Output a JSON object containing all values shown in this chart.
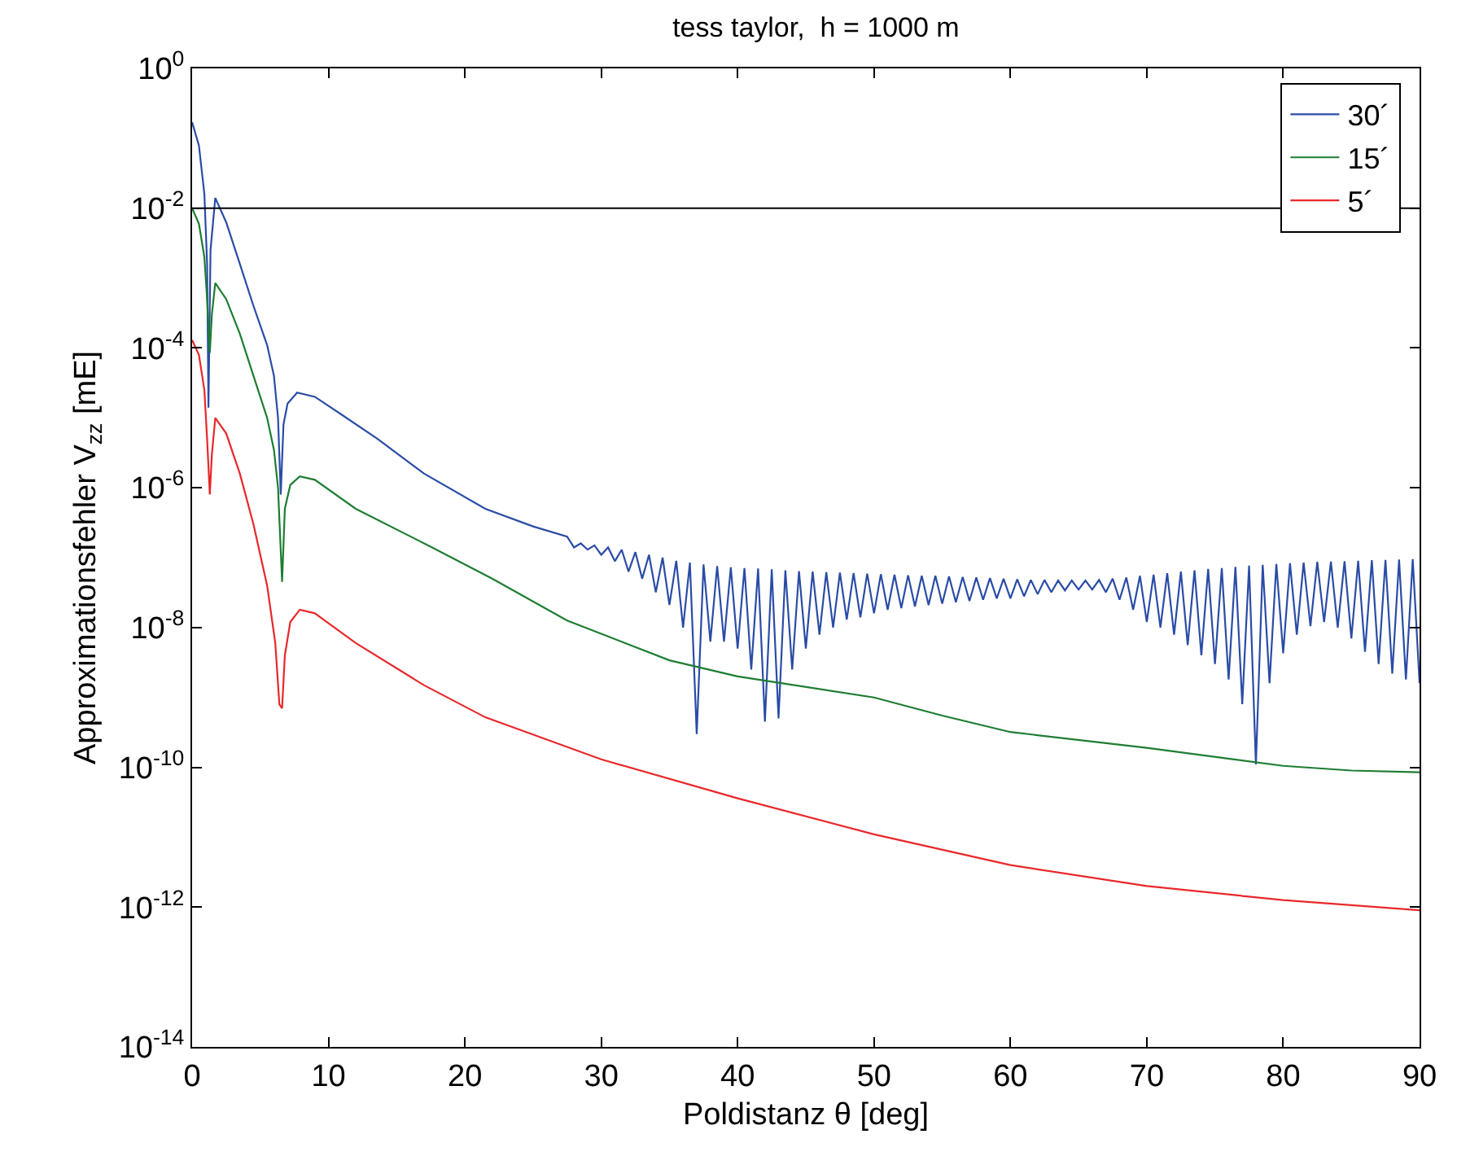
{
  "chart_data": {
    "type": "line",
    "title": "tess taylor,  h = 1000 m",
    "xlabel": "Poldistanz θ [deg]",
    "ylabel": "Approximationsfehler V$_{zz}$ [mE]",
    "log": "y",
    "legend": "top right",
    "marker": "none",
    "line_style": "solid",
    "xlim": [
      0,
      90
    ],
    "xticks": [
      0,
      10,
      20,
      30,
      40,
      50,
      60,
      70,
      80,
      90
    ],
    "ylim": [
      1e-14,
      1
    ],
    "yticks": [
      {
        "value": 1,
        "label": "10$^{0}$"
      },
      {
        "value": 0.01,
        "label": "10$^{-2}$"
      },
      {
        "value": 0.0001,
        "label": "10$^{-4}$"
      },
      {
        "value": 1e-06,
        "label": "10$^{-6}$"
      },
      {
        "value": 1e-08,
        "label": "10$^{-8}$"
      },
      {
        "value": 1e-10,
        "label": "10$^{-10}$"
      },
      {
        "value": 1e-12,
        "label": "10$^{-12}$"
      },
      {
        "value": 1e-14,
        "label": "10$^{-14}$"
      }
    ],
    "ref_lines": [
      {
        "axis": "y",
        "value": 0.01,
        "color": "#000000"
      }
    ],
    "series": [
      {
        "name": "30´",
        "color": "#2a4ca6",
        "x": [
          0,
          0.5,
          0.9,
          1.1,
          1.2,
          1.35,
          1.7,
          2.5,
          3.5,
          4.5,
          5.5,
          6.0,
          6.3,
          6.5,
          6.7,
          7.0,
          7.7,
          9,
          11,
          13.6,
          17,
          21.5,
          25,
          27.5,
          28,
          28.5,
          29,
          29.5,
          30,
          30.5,
          31,
          31.5,
          32,
          32.5,
          33,
          33.5,
          34,
          34.5,
          35,
          35.5,
          36,
          36.5,
          37,
          37.5,
          38,
          38.5,
          39,
          39.5,
          40,
          40.5,
          41,
          41.5,
          42,
          42.5,
          43,
          43.5,
          44,
          44.5,
          45,
          45.5,
          46,
          46.5,
          47,
          47.5,
          48,
          48.5,
          49,
          49.5,
          50,
          50.5,
          51,
          51.5,
          52,
          52.5,
          53,
          53.5,
          54,
          54.5,
          55,
          55.5,
          56,
          56.5,
          57,
          57.5,
          58,
          58.5,
          59,
          59.5,
          60,
          60.5,
          61,
          61.5,
          62,
          62.5,
          63,
          63.5,
          64,
          64.5,
          65,
          65.5,
          66,
          66.5,
          67,
          67.5,
          68,
          68.5,
          69,
          69.5,
          70,
          70.5,
          71,
          71.5,
          72,
          72.5,
          73,
          73.5,
          74,
          74.5,
          75,
          75.5,
          76,
          76.5,
          77,
          77.5,
          78,
          78.5,
          79,
          79.5,
          80,
          80.5,
          81,
          81.5,
          82,
          82.5,
          83,
          83.5,
          84,
          84.5,
          85,
          85.5,
          86,
          86.5,
          87,
          87.5,
          88,
          88.5,
          89,
          89.5,
          90
        ],
        "values": [
          0.17,
          0.079,
          0.016,
          0.0016,
          1.4e-05,
          0.0025,
          0.014,
          0.0063,
          0.0016,
          0.0004,
          0.00011,
          4e-05,
          1e-05,
          8e-07,
          8e-06,
          1.6e-05,
          2.3e-05,
          2e-05,
          1.1e-05,
          5e-06,
          1.6e-06,
          5e-07,
          2.8e-07,
          2e-07,
          1.4e-07,
          1.6e-07,
          1.3e-07,
          1.5e-07,
          1.1e-07,
          1.4e-07,
          8.9e-08,
          1.3e-07,
          6.3e-08,
          1.2e-07,
          5e-08,
          1.1e-07,
          3.2e-08,
          1e-07,
          2.1e-08,
          9e-08,
          1e-08,
          8.5e-08,
          3e-10,
          8e-08,
          6.3e-09,
          7.6e-08,
          6.3e-09,
          7.3e-08,
          5e-09,
          7.1e-08,
          2.5e-09,
          7e-08,
          4.5e-10,
          6.8e-08,
          5e-10,
          6.6e-08,
          2.5e-09,
          6.4e-08,
          5e-09,
          6.3e-08,
          7.9e-09,
          6.2e-08,
          1e-08,
          6.1e-08,
          1.3e-08,
          6e-08,
          1.4e-08,
          5.9e-08,
          1.6e-08,
          5.8e-08,
          1.8e-08,
          5.7e-08,
          1.9e-08,
          5.6e-08,
          2e-08,
          5.5e-08,
          2.1e-08,
          5.5e-08,
          2.2e-08,
          5.4e-08,
          2.3e-08,
          5.3e-08,
          2.4e-08,
          5.2e-08,
          2.5e-08,
          5.1e-08,
          2.6e-08,
          5e-08,
          2.6e-08,
          4.9e-08,
          2.8e-08,
          4.8e-08,
          3e-08,
          4.8e-08,
          3.2e-08,
          4.7e-08,
          3.4e-08,
          4.7e-08,
          3.5e-08,
          4.7e-08,
          3.5e-08,
          4.8e-08,
          3.2e-08,
          5e-08,
          2.5e-08,
          5.2e-08,
          1.8e-08,
          5.5e-08,
          1.2e-08,
          5.7e-08,
          1e-08,
          6e-08,
          7.9e-09,
          6.3e-08,
          5.6e-09,
          6.6e-08,
          4e-09,
          6.9e-08,
          3e-09,
          7.1e-08,
          1.8e-09,
          7.4e-08,
          8e-10,
          7.7e-08,
          1.1e-10,
          7.9e-08,
          1.6e-09,
          8.1e-08,
          4.3e-09,
          8.3e-08,
          7.9e-09,
          8.5e-08,
          1.05e-08,
          8.7e-08,
          1.2e-08,
          8.8e-08,
          1e-08,
          8.9e-08,
          7e-09,
          9e-08,
          4.5e-09,
          9.2e-08,
          3e-09,
          9.3e-08,
          2.2e-09,
          9.4e-08,
          1.8e-09,
          9.5e-08,
          1.6e-09
        ]
      },
      {
        "name": "15´",
        "color": "#1e7d32",
        "x": [
          0,
          0.5,
          0.9,
          1.1,
          1.3,
          1.45,
          1.7,
          2.5,
          3.5,
          4.5,
          5.5,
          6.0,
          6.3,
          6.6,
          6.8,
          7.2,
          7.9,
          9,
          12,
          17.6,
          22,
          27.5,
          35,
          40,
          50,
          55,
          60,
          70,
          80,
          85,
          90
        ],
        "values": [
          0.01,
          0.006,
          0.002,
          0.0005,
          8.5e-05,
          0.0003,
          0.00085,
          0.0005,
          0.00016,
          4e-05,
          1e-05,
          3.5e-06,
          1e-06,
          4.5e-08,
          5e-07,
          1.1e-06,
          1.45e-06,
          1.3e-06,
          5e-07,
          1.4e-07,
          5e-08,
          1.26e-08,
          3.4e-09,
          2e-09,
          1e-09,
          5.5e-10,
          3.2e-10,
          1.9e-10,
          1.05e-10,
          9e-11,
          8.5e-11
        ]
      },
      {
        "name": "5´",
        "color": "#e8282a",
        "x": [
          0,
          0.5,
          0.9,
          1.1,
          1.3,
          1.45,
          1.7,
          2.5,
          3.5,
          4.5,
          5.5,
          6.1,
          6.4,
          6.6,
          6.8,
          7.2,
          7.9,
          9,
          12,
          17,
          21.5,
          30,
          40,
          50,
          60,
          70,
          80,
          90
        ],
        "values": [
          0.00013,
          8e-05,
          2.5e-05,
          5e-06,
          8e-07,
          3e-06,
          1e-05,
          6e-06,
          1.6e-06,
          3e-07,
          4e-08,
          6e-09,
          8e-10,
          7e-10,
          4e-09,
          1.2e-08,
          1.8e-08,
          1.6e-08,
          6e-09,
          1.5e-09,
          5.2e-10,
          1.3e-10,
          3.6e-11,
          1.1e-11,
          4e-12,
          2e-12,
          1.26e-12,
          9e-13
        ]
      }
    ]
  }
}
